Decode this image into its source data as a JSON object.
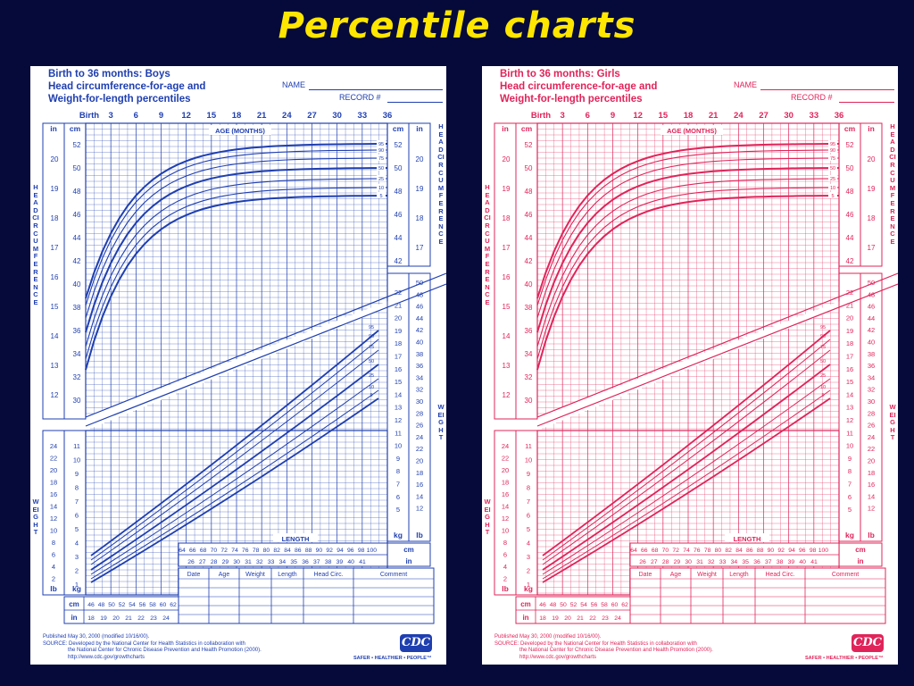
{
  "slide_title": "Percentile charts",
  "charts": [
    {
      "id": "boys",
      "color": "#1f3fb0",
      "title_lines": [
        "Birth to 36 months: Boys",
        "Head circumference-for-age and",
        "Weight-for-length percentiles"
      ],
      "name_label": "NAME",
      "record_label": "RECORD #",
      "age_ticks": [
        "Birth",
        "3",
        "6",
        "9",
        "12",
        "15",
        "18",
        "21",
        "24",
        "27",
        "30",
        "33",
        "36"
      ],
      "age_axis_label": "AGE (MONTHS)",
      "length_axis_label": "LENGTH",
      "head_side_label": "HEAD CIRCUMFERENCE",
      "weight_side_label": "WEIGHT",
      "percentiles": [
        "95",
        "90",
        "75",
        "50",
        "25",
        "10",
        "5"
      ],
      "table_headers": [
        "Date",
        "Age",
        "Weight",
        "Length",
        "Head Circ.",
        "Comment"
      ],
      "footer_lines": [
        "Published May 30, 2000 (modified 10/16/00).",
        "SOURCE: Developed by the National Center for Health Statistics in collaboration with",
        "the National Center for Chronic Disease Prevention and Health Promotion (2000).",
        "http://www.cdc.gov/growthcharts"
      ],
      "logo_text": "CDC",
      "tagline": "SAFER • HEALTHIER • PEOPLE™"
    },
    {
      "id": "girls",
      "color": "#e0245a",
      "title_lines": [
        "Birth to 36 months: Girls",
        "Head circumference-for-age and",
        "Weight-for-length percentiles"
      ],
      "name_label": "NAME",
      "record_label": "RECORD #",
      "age_ticks": [
        "Birth",
        "3",
        "6",
        "9",
        "12",
        "15",
        "18",
        "21",
        "24",
        "27",
        "30",
        "33",
        "36"
      ],
      "age_axis_label": "AGE (MONTHS)",
      "length_axis_label": "LENGTH",
      "head_side_label": "HEAD CIRCUMFERENCE",
      "weight_side_label": "WEIGHT",
      "percentiles": [
        "95",
        "90",
        "75",
        "50",
        "25",
        "10",
        "5"
      ],
      "table_headers": [
        "Date",
        "Age",
        "Weight",
        "Length",
        "Head Circ.",
        "Comment"
      ],
      "footer_lines": [
        "Published May 30, 2000 (modified 10/16/00).",
        "SOURCE: Developed by the National Center for Health Statistics in collaboration with",
        "the National Center for Chronic Disease Prevention and Health Promotion (2000).",
        "http://www.cdc.gov/growthcharts"
      ],
      "logo_text": "CDC",
      "tagline": "SAFER • HEALTHIER • PEOPLE™"
    }
  ],
  "axis_labels": {
    "head_cm": [
      "52",
      "50",
      "48",
      "46",
      "44",
      "42",
      "40",
      "38",
      "36",
      "34",
      "32",
      "30"
    ],
    "head_in": [
      "20",
      "19",
      "18",
      "17",
      "16",
      "15",
      "14",
      "13",
      "12"
    ],
    "right_head_cm": [
      "52",
      "50",
      "48",
      "46",
      "44",
      "42"
    ],
    "right_head_in": [
      "20",
      "19",
      "18",
      "17"
    ],
    "weight_kg_right": [
      "22",
      "21",
      "20",
      "19",
      "18",
      "17",
      "16",
      "15",
      "14",
      "13",
      "12",
      "11",
      "10",
      "9",
      "8",
      "7",
      "6",
      "5"
    ],
    "weight_lb_right": [
      "50",
      "48",
      "46",
      "44",
      "42",
      "40",
      "38",
      "36",
      "34",
      "32",
      "30",
      "28",
      "26",
      "24",
      "22",
      "20",
      "18",
      "16",
      "14",
      "12"
    ],
    "weight_kg_left": [
      "11",
      "10",
      "9",
      "8",
      "7",
      "6",
      "5",
      "4",
      "3",
      "2",
      "1"
    ],
    "weight_lb_left": [
      "24",
      "22",
      "20",
      "18",
      "16",
      "14",
      "12",
      "10",
      "8",
      "6",
      "4",
      "2"
    ],
    "length_cm_upper": [
      "64",
      "66",
      "68",
      "70",
      "72",
      "74",
      "76",
      "78",
      "80",
      "82",
      "84",
      "86",
      "88",
      "90",
      "92",
      "94",
      "96",
      "98",
      "100"
    ],
    "length_in_upper": [
      "26",
      "27",
      "28",
      "29",
      "30",
      "31",
      "32",
      "33",
      "34",
      "35",
      "36",
      "37",
      "38",
      "39",
      "40",
      "41"
    ],
    "length_cm_lower": [
      "46",
      "48",
      "50",
      "52",
      "54",
      "56",
      "58",
      "60",
      "62"
    ],
    "length_in_lower": [
      "18",
      "19",
      "20",
      "21",
      "22",
      "23",
      "24"
    ],
    "unit_in": "in",
    "unit_cm": "cm",
    "unit_kg": "kg",
    "unit_lb": "lb"
  }
}
